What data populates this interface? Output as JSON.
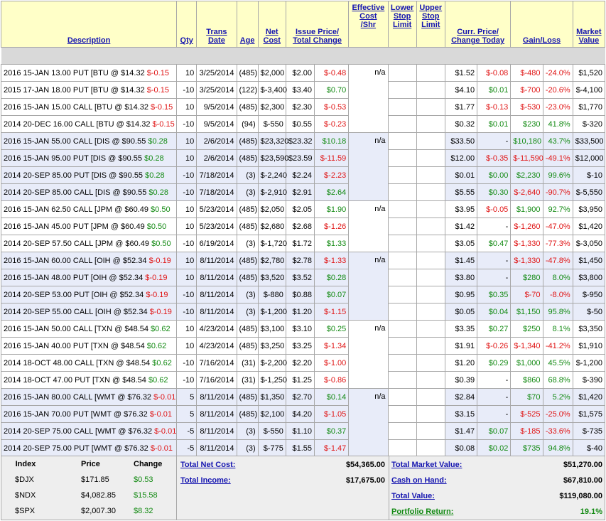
{
  "headers": {
    "description": "Description",
    "qty": "Qty",
    "trans_date": [
      "Trans",
      "Date"
    ],
    "age": "Age",
    "net_cost": [
      "Net",
      "Cost"
    ],
    "issue_price": [
      "Issue Price/",
      "Total Change"
    ],
    "effective_cost": [
      "Effective",
      "Cost",
      "/Shr"
    ],
    "lower_stop": [
      "Lower",
      "Stop",
      "Limit"
    ],
    "upper_stop": [
      "Upper",
      "Stop",
      "Limit"
    ],
    "curr_price": [
      "Curr. Price/",
      "Change Today"
    ],
    "gain_loss": "Gain/Loss",
    "market_value": [
      "Market",
      "Value"
    ]
  },
  "groups": [
    {
      "shade": "w",
      "effective": "n/a",
      "rows": [
        {
          "desc": "2016 15-JAN 13.00 PUT [BTU @ $14.32 ",
          "chg": "$-0.15",
          "chg_color": "red",
          "qty": "10",
          "date": "3/25/2014",
          "age": "(485)",
          "cost": "$2,000",
          "issue": "$2.00",
          "tchg": "$-0.48",
          "tchg_color": "red",
          "curr": "$1.52",
          "today": "$-0.08",
          "today_color": "red",
          "gl": "$-480",
          "gl_color": "red",
          "glp": "-24.0%",
          "glp_color": "red",
          "mv": "$1,520"
        },
        {
          "desc": "2015 17-JAN 18.00 PUT [BTU @ $14.32 ",
          "chg": "$-0.15",
          "chg_color": "red",
          "qty": "-10",
          "date": "3/25/2014",
          "age": "(122)",
          "cost": "$-3,400",
          "issue": "$3.40",
          "tchg": "$0.70",
          "tchg_color": "grn",
          "curr": "$4.10",
          "today": "$0.01",
          "today_color": "grn",
          "gl": "$-700",
          "gl_color": "red",
          "glp": "-20.6%",
          "glp_color": "red",
          "mv": "$-4,100"
        },
        {
          "desc": "2016 15-JAN 15.00 CALL [BTU @ $14.32 ",
          "chg": "$-0.15",
          "chg_color": "red",
          "qty": "10",
          "date": "9/5/2014",
          "age": "(485)",
          "cost": "$2,300",
          "issue": "$2.30",
          "tchg": "$-0.53",
          "tchg_color": "red",
          "curr": "$1.77",
          "today": "$-0.13",
          "today_color": "red",
          "gl": "$-530",
          "gl_color": "red",
          "glp": "-23.0%",
          "glp_color": "red",
          "mv": "$1,770"
        },
        {
          "desc": "2014 20-DEC 16.00 CALL [BTU @ $14.32 ",
          "chg": "$-0.15",
          "chg_color": "red",
          "qty": "-10",
          "date": "9/5/2014",
          "age": "(94)",
          "cost": "$-550",
          "issue": "$0.55",
          "tchg": "$-0.23",
          "tchg_color": "red",
          "curr": "$0.32",
          "today": "$0.01",
          "today_color": "grn",
          "gl": "$230",
          "gl_color": "grn",
          "glp": "41.8%",
          "glp_color": "grn",
          "mv": "$-320"
        }
      ]
    },
    {
      "shade": "b",
      "effective": "n/a",
      "rows": [
        {
          "desc": "2016 15-JAN 55.00 CALL [DIS @ $90.55 ",
          "chg": "$0.28",
          "chg_color": "grn",
          "qty": "10",
          "date": "2/6/2014",
          "age": "(485)",
          "cost": "$23,320",
          "issue": "$23.32",
          "tchg": "$10.18",
          "tchg_color": "grn",
          "curr": "$33.50",
          "today": "-",
          "today_color": "",
          "gl": "$10,180",
          "gl_color": "grn",
          "glp": "43.7%",
          "glp_color": "grn",
          "mv": "$33,500"
        },
        {
          "desc": "2016 15-JAN 95.00 PUT [DIS @ $90.55 ",
          "chg": "$0.28",
          "chg_color": "grn",
          "qty": "10",
          "date": "2/6/2014",
          "age": "(485)",
          "cost": "$23,590",
          "issue": "$23.59",
          "tchg": "$-11.59",
          "tchg_color": "red",
          "curr": "$12.00",
          "today": "$-0.35",
          "today_color": "red",
          "gl": "$-11,590",
          "gl_color": "red",
          "glp": "-49.1%",
          "glp_color": "red",
          "mv": "$12,000"
        },
        {
          "desc": "2014 20-SEP 85.00 PUT [DIS @ $90.55 ",
          "chg": "$0.28",
          "chg_color": "grn",
          "qty": "-10",
          "date": "7/18/2014",
          "age": "(3)",
          "cost": "$-2,240",
          "issue": "$2.24",
          "tchg": "$-2.23",
          "tchg_color": "red",
          "curr": "$0.01",
          "today": "$0.00",
          "today_color": "grn",
          "gl": "$2,230",
          "gl_color": "grn",
          "glp": "99.6%",
          "glp_color": "grn",
          "mv": "$-10"
        },
        {
          "desc": "2014 20-SEP 85.00 CALL [DIS @ $90.55 ",
          "chg": "$0.28",
          "chg_color": "grn",
          "qty": "-10",
          "date": "7/18/2014",
          "age": "(3)",
          "cost": "$-2,910",
          "issue": "$2.91",
          "tchg": "$2.64",
          "tchg_color": "grn",
          "curr": "$5.55",
          "today": "$0.30",
          "today_color": "grn",
          "gl": "$-2,640",
          "gl_color": "red",
          "glp": "-90.7%",
          "glp_color": "red",
          "mv": "$-5,550"
        }
      ]
    },
    {
      "shade": "w",
      "effective": "n/a",
      "rows": [
        {
          "desc": "2016 15-JAN 62.50 CALL [JPM @ $60.49 ",
          "chg": "$0.50",
          "chg_color": "grn",
          "qty": "10",
          "date": "5/23/2014",
          "age": "(485)",
          "cost": "$2,050",
          "issue": "$2.05",
          "tchg": "$1.90",
          "tchg_color": "grn",
          "curr": "$3.95",
          "today": "$-0.05",
          "today_color": "red",
          "gl": "$1,900",
          "gl_color": "grn",
          "glp": "92.7%",
          "glp_color": "grn",
          "mv": "$3,950"
        },
        {
          "desc": "2016 15-JAN 45.00 PUT [JPM @ $60.49 ",
          "chg": "$0.50",
          "chg_color": "grn",
          "qty": "10",
          "date": "5/23/2014",
          "age": "(485)",
          "cost": "$2,680",
          "issue": "$2.68",
          "tchg": "$-1.26",
          "tchg_color": "red",
          "curr": "$1.42",
          "today": "-",
          "today_color": "",
          "gl": "$-1,260",
          "gl_color": "red",
          "glp": "-47.0%",
          "glp_color": "red",
          "mv": "$1,420"
        },
        {
          "desc": "2014 20-SEP 57.50 CALL [JPM @ $60.49 ",
          "chg": "$0.50",
          "chg_color": "grn",
          "qty": "-10",
          "date": "6/19/2014",
          "age": "(3)",
          "cost": "$-1,720",
          "issue": "$1.72",
          "tchg": "$1.33",
          "tchg_color": "grn",
          "curr": "$3.05",
          "today": "$0.47",
          "today_color": "grn",
          "gl": "$-1,330",
          "gl_color": "red",
          "glp": "-77.3%",
          "glp_color": "red",
          "mv": "$-3,050"
        }
      ]
    },
    {
      "shade": "b",
      "effective": "n/a",
      "rows": [
        {
          "desc": "2016 15-JAN 60.00 CALL [OIH @ $52.34 ",
          "chg": "$-0.19",
          "chg_color": "red",
          "qty": "10",
          "date": "8/11/2014",
          "age": "(485)",
          "cost": "$2,780",
          "issue": "$2.78",
          "tchg": "$-1.33",
          "tchg_color": "red",
          "curr": "$1.45",
          "today": "-",
          "today_color": "",
          "gl": "$-1,330",
          "gl_color": "red",
          "glp": "-47.8%",
          "glp_color": "red",
          "mv": "$1,450"
        },
        {
          "desc": "2016 15-JAN 48.00 PUT [OIH @ $52.34 ",
          "chg": "$-0.19",
          "chg_color": "red",
          "qty": "10",
          "date": "8/11/2014",
          "age": "(485)",
          "cost": "$3,520",
          "issue": "$3.52",
          "tchg": "$0.28",
          "tchg_color": "grn",
          "curr": "$3.80",
          "today": "-",
          "today_color": "",
          "gl": "$280",
          "gl_color": "grn",
          "glp": "8.0%",
          "glp_color": "grn",
          "mv": "$3,800"
        },
        {
          "desc": "2014 20-SEP 53.00 PUT [OIH @ $52.34 ",
          "chg": "$-0.19",
          "chg_color": "red",
          "qty": "-10",
          "date": "8/11/2014",
          "age": "(3)",
          "cost": "$-880",
          "issue": "$0.88",
          "tchg": "$0.07",
          "tchg_color": "grn",
          "curr": "$0.95",
          "today": "$0.35",
          "today_color": "grn",
          "gl": "$-70",
          "gl_color": "red",
          "glp": "-8.0%",
          "glp_color": "red",
          "mv": "$-950"
        },
        {
          "desc": "2014 20-SEP 55.00 CALL [OIH @ $52.34 ",
          "chg": "$-0.19",
          "chg_color": "red",
          "qty": "-10",
          "date": "8/11/2014",
          "age": "(3)",
          "cost": "$-1,200",
          "issue": "$1.20",
          "tchg": "$-1.15",
          "tchg_color": "red",
          "curr": "$0.05",
          "today": "$0.04",
          "today_color": "grn",
          "gl": "$1,150",
          "gl_color": "grn",
          "glp": "95.8%",
          "glp_color": "grn",
          "mv": "$-50"
        }
      ]
    },
    {
      "shade": "w",
      "effective": "n/a",
      "rows": [
        {
          "desc": "2016 15-JAN 50.00 CALL [TXN @ $48.54 ",
          "chg": "$0.62",
          "chg_color": "grn",
          "qty": "10",
          "date": "4/23/2014",
          "age": "(485)",
          "cost": "$3,100",
          "issue": "$3.10",
          "tchg": "$0.25",
          "tchg_color": "grn",
          "curr": "$3.35",
          "today": "$0.27",
          "today_color": "grn",
          "gl": "$250",
          "gl_color": "grn",
          "glp": "8.1%",
          "glp_color": "grn",
          "mv": "$3,350"
        },
        {
          "desc": "2016 15-JAN 40.00 PUT [TXN @ $48.54 ",
          "chg": "$0.62",
          "chg_color": "grn",
          "qty": "10",
          "date": "4/23/2014",
          "age": "(485)",
          "cost": "$3,250",
          "issue": "$3.25",
          "tchg": "$-1.34",
          "tchg_color": "red",
          "curr": "$1.91",
          "today": "$-0.26",
          "today_color": "red",
          "gl": "$-1,340",
          "gl_color": "red",
          "glp": "-41.2%",
          "glp_color": "red",
          "mv": "$1,910"
        },
        {
          "desc": "2014 18-OCT 48.00 CALL [TXN @ $48.54 ",
          "chg": "$0.62",
          "chg_color": "grn",
          "qty": "-10",
          "date": "7/16/2014",
          "age": "(31)",
          "cost": "$-2,200",
          "issue": "$2.20",
          "tchg": "$-1.00",
          "tchg_color": "red",
          "curr": "$1.20",
          "today": "$0.29",
          "today_color": "grn",
          "gl": "$1,000",
          "gl_color": "grn",
          "glp": "45.5%",
          "glp_color": "grn",
          "mv": "$-1,200"
        },
        {
          "desc": "2014 18-OCT 47.00 PUT [TXN @ $48.54 ",
          "chg": "$0.62",
          "chg_color": "grn",
          "qty": "-10",
          "date": "7/16/2014",
          "age": "(31)",
          "cost": "$-1,250",
          "issue": "$1.25",
          "tchg": "$-0.86",
          "tchg_color": "red",
          "curr": "$0.39",
          "today": "-",
          "today_color": "",
          "gl": "$860",
          "gl_color": "grn",
          "glp": "68.8%",
          "glp_color": "grn",
          "mv": "$-390"
        }
      ]
    },
    {
      "shade": "b",
      "effective": "n/a",
      "rows": [
        {
          "desc": "2016 15-JAN 80.00 CALL [WMT @ $76.32 ",
          "chg": "$-0.01",
          "chg_color": "red",
          "qty": "5",
          "date": "8/11/2014",
          "age": "(485)",
          "cost": "$1,350",
          "issue": "$2.70",
          "tchg": "$0.14",
          "tchg_color": "grn",
          "curr": "$2.84",
          "today": "-",
          "today_color": "",
          "gl": "$70",
          "gl_color": "grn",
          "glp": "5.2%",
          "glp_color": "grn",
          "mv": "$1,420"
        },
        {
          "desc": "2016 15-JAN 70.00 PUT [WMT @ $76.32 ",
          "chg": "$-0.01",
          "chg_color": "red",
          "qty": "5",
          "date": "8/11/2014",
          "age": "(485)",
          "cost": "$2,100",
          "issue": "$4.20",
          "tchg": "$-1.05",
          "tchg_color": "red",
          "curr": "$3.15",
          "today": "-",
          "today_color": "",
          "gl": "$-525",
          "gl_color": "red",
          "glp": "-25.0%",
          "glp_color": "red",
          "mv": "$1,575"
        },
        {
          "desc": "2014 20-SEP 75.00 CALL [WMT @ $76.32 ",
          "chg": "$-0.01",
          "chg_color": "red",
          "qty": "-5",
          "date": "8/11/2014",
          "age": "(3)",
          "cost": "$-550",
          "issue": "$1.10",
          "tchg": "$0.37",
          "tchg_color": "grn",
          "curr": "$1.47",
          "today": "$0.07",
          "today_color": "grn",
          "gl": "$-185",
          "gl_color": "red",
          "glp": "-33.6%",
          "glp_color": "red",
          "mv": "$-735"
        },
        {
          "desc": "2014 20-SEP 75.00 PUT [WMT @ $76.32 ",
          "chg": "$-0.01",
          "chg_color": "red",
          "qty": "-5",
          "date": "8/11/2014",
          "age": "(3)",
          "cost": "$-775",
          "issue": "$1.55",
          "tchg": "$-1.47",
          "tchg_color": "red",
          "curr": "$0.08",
          "today": "$0.02",
          "today_color": "grn",
          "gl": "$735",
          "gl_color": "grn",
          "glp": "94.8%",
          "glp_color": "grn",
          "mv": "$-40"
        }
      ]
    }
  ],
  "index": {
    "headers": {
      "index": "Index",
      "price": "Price",
      "change": "Change"
    },
    "rows": [
      {
        "name": "$DJX",
        "price": "$171.85",
        "change": "$0.53"
      },
      {
        "name": "$NDX",
        "price": "$4,082.85",
        "change": "$15.58"
      },
      {
        "name": "$SPX",
        "price": "$2,007.30",
        "change": "$8.32"
      }
    ]
  },
  "totals": {
    "net_cost_label": "Total Net Cost:",
    "net_cost_value": "$54,365.00",
    "income_label": "Total Income:",
    "income_value": "$17,675.00",
    "market_value_label": "Total Market Value:",
    "market_value_value": "$51,270.00",
    "cash_label": "Cash on Hand:",
    "cash_value": "$67,810.00",
    "total_value_label": "Total Value:",
    "total_value_value": "$119,080.00",
    "portfolio_return_label": "Portfolio Return:",
    "portfolio_return_value": "19.1%"
  },
  "colors": {
    "header_bg": "#ffffc8",
    "link": "#1515b0",
    "negative": "#e01515",
    "positive": "#138a13",
    "group_shade": "#e8ecf9"
  }
}
